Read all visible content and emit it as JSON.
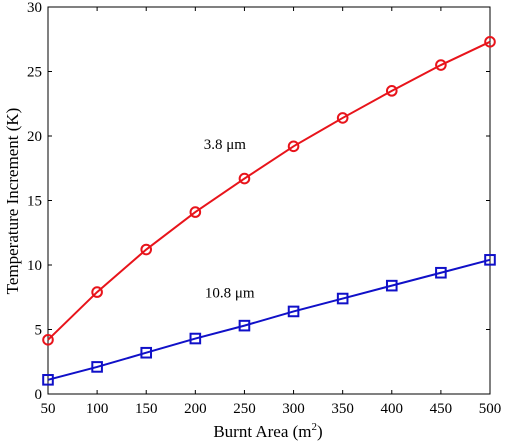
{
  "chart_data": {
    "type": "line",
    "xlabel_main": "Burnt Area (m",
    "xlabel_sup": "2",
    "xlabel_tail": ")",
    "ylabel": "Temperature Increment (K)",
    "xlim": [
      50,
      500
    ],
    "ylim": [
      0,
      30
    ],
    "xticks": [
      50,
      100,
      150,
      200,
      250,
      300,
      350,
      400,
      450,
      500
    ],
    "yticks": [
      0,
      5,
      10,
      15,
      20,
      25,
      30
    ],
    "grid": false,
    "x": [
      50,
      100,
      150,
      200,
      250,
      300,
      350,
      400,
      450,
      500
    ],
    "series": [
      {
        "color": "#e8141b",
        "marker": "circle",
        "values": [
          4.2,
          7.9,
          11.2,
          14.1,
          16.7,
          19.2,
          21.4,
          23.5,
          25.5,
          27.3
        ]
      },
      {
        "color": "#1010c8",
        "marker": "square",
        "values": [
          1.1,
          2.1,
          3.2,
          4.3,
          5.3,
          6.4,
          7.4,
          8.4,
          9.4,
          10.4
        ]
      }
    ],
    "annotations": [
      {
        "text": "3.8 μm",
        "x": 230,
        "y": 19.0
      },
      {
        "text": "10.8 μm",
        "x": 235,
        "y": 7.5
      }
    ]
  }
}
